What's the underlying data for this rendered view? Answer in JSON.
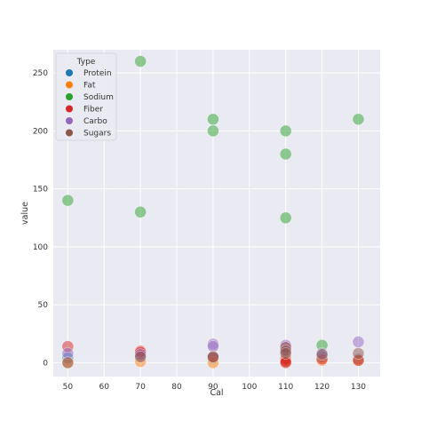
{
  "chart_data": {
    "type": "scatter",
    "xlabel": "Cal",
    "ylabel": "value",
    "xlim": [
      46,
      136
    ],
    "ylim": [
      -12,
      270
    ],
    "xticks": [
      50,
      60,
      70,
      80,
      90,
      100,
      110,
      120,
      130
    ],
    "yticks": [
      0,
      50,
      100,
      150,
      200,
      250
    ],
    "grid": true,
    "legend": {
      "title": "Type",
      "placement": "top-left"
    },
    "series": [
      {
        "name": "Protein",
        "color": "#1f77b4",
        "points": [
          [
            50,
            4
          ],
          [
            70,
            6
          ],
          [
            90,
            4
          ],
          [
            110,
            4
          ],
          [
            110,
            2
          ],
          [
            120,
            5
          ],
          [
            130,
            3
          ]
        ]
      },
      {
        "name": "Fat",
        "color": "#ff7f0e",
        "points": [
          [
            50,
            0
          ],
          [
            70,
            1
          ],
          [
            90,
            0
          ],
          [
            110,
            1
          ],
          [
            110,
            2
          ],
          [
            120,
            2
          ],
          [
            130,
            2
          ]
        ]
      },
      {
        "name": "Sodium",
        "color": "#2ca02c",
        "points": [
          [
            50,
            140
          ],
          [
            70,
            260
          ],
          [
            70,
            130
          ],
          [
            90,
            210
          ],
          [
            90,
            200
          ],
          [
            110,
            200
          ],
          [
            110,
            180
          ],
          [
            110,
            125
          ],
          [
            120,
            15
          ],
          [
            130,
            210
          ]
        ]
      },
      {
        "name": "Fiber",
        "color": "#d62728",
        "points": [
          [
            50,
            14
          ],
          [
            70,
            10
          ],
          [
            70,
            9
          ],
          [
            90,
            5
          ],
          [
            110,
            3
          ],
          [
            110,
            1
          ],
          [
            110,
            0
          ],
          [
            110,
            13
          ],
          [
            120,
            3
          ],
          [
            130,
            2
          ]
        ]
      },
      {
        "name": "Carbo",
        "color": "#9467bd",
        "points": [
          [
            50,
            8
          ],
          [
            70,
            7
          ],
          [
            90,
            16
          ],
          [
            90,
            14
          ],
          [
            110,
            15
          ],
          [
            110,
            11
          ],
          [
            120,
            8
          ],
          [
            130,
            18
          ]
        ]
      },
      {
        "name": "Sugars",
        "color": "#8c564b",
        "points": [
          [
            50,
            0
          ],
          [
            70,
            5
          ],
          [
            90,
            5
          ],
          [
            110,
            13
          ],
          [
            110,
            10
          ],
          [
            110,
            8
          ],
          [
            120,
            7
          ],
          [
            130,
            8
          ]
        ]
      }
    ]
  },
  "style": {
    "plot_background": "#eaeaf2",
    "grid_color": "#ffffff",
    "point_alpha": 0.5
  }
}
